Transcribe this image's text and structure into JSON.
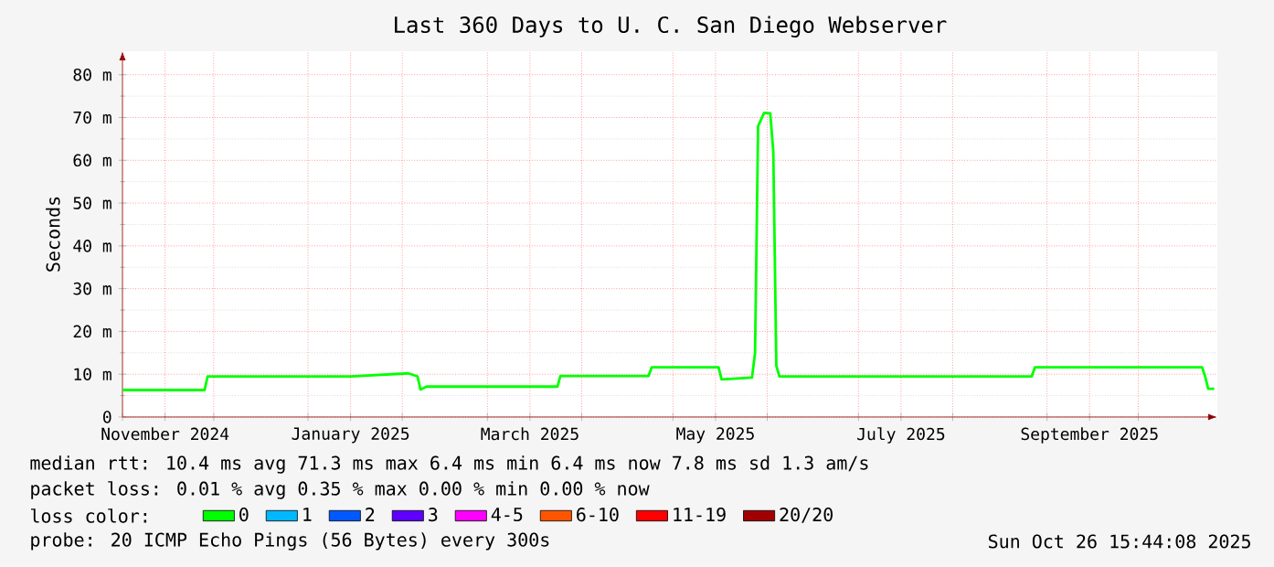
{
  "chart_data": {
    "type": "line",
    "title": "Last 360 Days to U. C. San Diego Webserver",
    "ylabel": "Seconds",
    "x": [
      "2024-11-01",
      "2024-11-28",
      "2024-11-29",
      "2025-01-15",
      "2025-02-03",
      "2025-02-06",
      "2025-02-07",
      "2025-02-09",
      "2025-03-24",
      "2025-03-25",
      "2025-04-23",
      "2025-04-24",
      "2025-05-16",
      "2025-05-17",
      "2025-05-27",
      "2025-05-28",
      "2025-05-29",
      "2025-05-31",
      "2025-06-02",
      "2025-06-03",
      "2025-06-04",
      "2025-06-05",
      "2025-06-06",
      "2025-08-27",
      "2025-08-28",
      "2025-10-22",
      "2025-10-23",
      "2025-10-24",
      "2025-10-26"
    ],
    "series": [
      {
        "name": "0",
        "color": "#00ff00",
        "values": [
          6.3,
          6.3,
          9.5,
          9.5,
          10.2,
          9.5,
          6.4,
          7.1,
          7.1,
          9.6,
          9.6,
          11.6,
          11.6,
          8.8,
          9.2,
          15,
          68,
          71.1,
          71,
          62,
          12,
          9.5,
          9.5,
          9.5,
          11.6,
          11.6,
          9.5,
          6.6,
          6.6
        ]
      },
      {
        "name": "1",
        "color": "#00b8ff",
        "values": [
          null,
          null,
          null,
          null,
          null,
          null,
          null,
          null,
          null,
          null,
          null,
          null,
          null,
          null,
          null,
          null,
          null,
          null,
          null,
          null,
          null,
          null,
          null,
          null,
          null,
          null,
          null,
          null,
          null
        ]
      },
      {
        "name": "2",
        "color": "#0059ff",
        "values": [
          null,
          null,
          null,
          null,
          null,
          null,
          null,
          null,
          null,
          null,
          null,
          null,
          null,
          null,
          null,
          null,
          null,
          null,
          null,
          null,
          null,
          null,
          null,
          null,
          null,
          null,
          null,
          null,
          null
        ]
      },
      {
        "name": "3",
        "color": "#5e00ff",
        "values": [
          null,
          null,
          null,
          null,
          null,
          null,
          null,
          null,
          null,
          null,
          null,
          null,
          null,
          null,
          null,
          null,
          null,
          null,
          null,
          null,
          null,
          null,
          null,
          null,
          null,
          null,
          null,
          null,
          null
        ]
      },
      {
        "name": "4-5",
        "color": "#ff00ff",
        "values": [
          null,
          null,
          null,
          null,
          null,
          null,
          null,
          null,
          null,
          null,
          null,
          null,
          null,
          null,
          null,
          null,
          null,
          null,
          null,
          null,
          null,
          null,
          null,
          null,
          null,
          null,
          null,
          null,
          null
        ]
      },
      {
        "name": "6-10",
        "color": "#ff5500",
        "values": [
          null,
          null,
          null,
          null,
          null,
          null,
          null,
          null,
          null,
          null,
          null,
          null,
          null,
          null,
          null,
          null,
          null,
          null,
          null,
          null,
          null,
          null,
          null,
          null,
          null,
          null,
          null,
          null,
          null
        ]
      },
      {
        "name": "11-19",
        "color": "#ff0000",
        "values": [
          null,
          null,
          null,
          null,
          null,
          null,
          null,
          null,
          null,
          null,
          null,
          null,
          null,
          null,
          null,
          null,
          null,
          null,
          null,
          null,
          null,
          null,
          null,
          null,
          null,
          null,
          null,
          null,
          null
        ]
      },
      {
        "name": "20/20",
        "color": "#a10000",
        "values": [
          null,
          null,
          null,
          null,
          null,
          null,
          null,
          null,
          null,
          null,
          null,
          null,
          null,
          null,
          null,
          null,
          null,
          null,
          null,
          null,
          null,
          null,
          null,
          null,
          null,
          null,
          null,
          null,
          null
        ]
      }
    ],
    "xlim": [
      "2024-11-01",
      "2025-10-27"
    ],
    "xticks": [
      {
        "value": "2024-11-01",
        "label": null
      },
      {
        "value": "2024-12-01",
        "label": null
      },
      {
        "value": "2025-01-01",
        "label": null
      },
      {
        "value": "2025-02-01",
        "label": null
      },
      {
        "value": "2025-03-01",
        "label": null
      },
      {
        "value": "2025-04-01",
        "label": null
      },
      {
        "value": "2025-05-01",
        "label": null
      },
      {
        "value": "2025-06-01",
        "label": null
      },
      {
        "value": "2025-07-01",
        "label": null
      },
      {
        "value": "2025-08-01",
        "label": null
      },
      {
        "value": "2025-09-01",
        "label": null
      },
      {
        "value": "2025-10-01",
        "label": null
      },
      {
        "value": "2024-11-15",
        "label": "November 2024"
      },
      {
        "value": "2025-01-15",
        "label": "January 2025"
      },
      {
        "value": "2025-03-15",
        "label": "March 2025"
      },
      {
        "value": "2025-05-15",
        "label": "May 2025"
      },
      {
        "value": "2025-07-15",
        "label": "July 2025"
      },
      {
        "value": "2025-09-15",
        "label": "September 2025"
      }
    ],
    "ylim": [
      0,
      85.5
    ],
    "yticks": [
      0,
      {
        "value": 10,
        "label": "10 m"
      },
      {
        "value": 20,
        "label": "20 m"
      },
      {
        "value": 30,
        "label": "30 m"
      },
      {
        "value": 40,
        "label": "40 m"
      },
      {
        "value": 50,
        "label": "50 m"
      },
      {
        "value": 60,
        "label": "60 m"
      },
      {
        "value": 70,
        "label": "70 m"
      },
      {
        "value": 80,
        "label": "80 m"
      }
    ],
    "grid": true,
    "legend": "bottom",
    "legend_title": "loss color:",
    "annotations": [
      "median rtt: 10.4 ms avg 71.3 ms max 6.4 ms min 6.4 ms now 7.8 ms sd 1.3 am/s",
      "packet loss: 0.01 % avg 0.35 % max 0.00 % min 0.00 % now",
      "probe: 20 ICMP Echo Pings (56 Bytes) every 300s",
      "Sun Oct 26 15:44:08 2025"
    ]
  }
}
